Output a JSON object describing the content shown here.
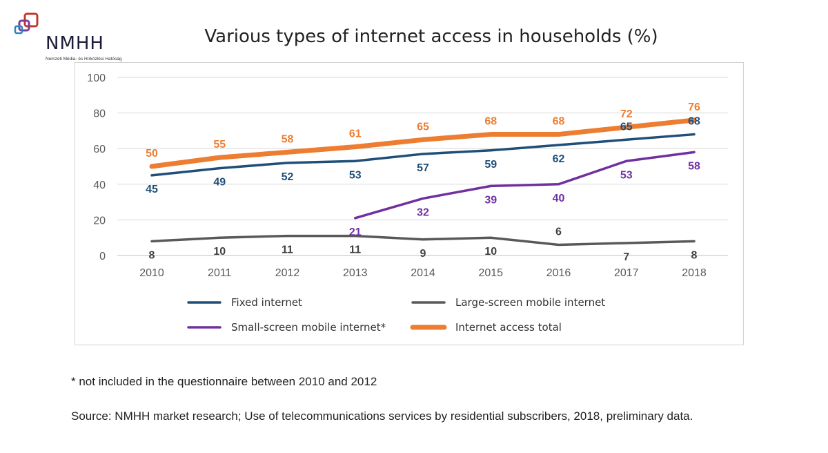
{
  "logo": {
    "text": "NMHH",
    "subtitle": "Nemzeti Média- és Hírközlési Hatóság"
  },
  "title": "Various types of internet access in households (%)",
  "footnote": "* not included in the questionnaire between 2010 and 2012",
  "source": "Source: NMHH market research; Use of telecommunications services by residential subscribers, 2018, preliminary data.",
  "chart_data": {
    "type": "line",
    "title": "Various types of internet access in households (%)",
    "x": [
      "2010",
      "2011",
      "2012",
      "2013",
      "2014",
      "2015",
      "2016",
      "2017",
      "2018"
    ],
    "ylim": [
      0,
      100
    ],
    "yticks": [
      0,
      20,
      40,
      60,
      80,
      100
    ],
    "grid": true,
    "legend_position": "bottom",
    "series": [
      {
        "name": "Fixed internet",
        "color": "#1f4e79",
        "values": [
          45,
          49,
          52,
          53,
          57,
          59,
          62,
          65,
          68
        ],
        "label_side": [
          "below",
          "below",
          "below",
          "below",
          "below",
          "below",
          "below",
          "above",
          "above"
        ]
      },
      {
        "name": "Large-screen mobile internet",
        "color": "#595959",
        "values": [
          8,
          10,
          11,
          11,
          9,
          10,
          6,
          7,
          8
        ],
        "label_side": [
          "below",
          "below",
          "below",
          "below",
          "below",
          "below",
          "above",
          "below",
          "below"
        ]
      },
      {
        "name": "Small-screen mobile internet*",
        "color": "#7030a0",
        "values": [
          null,
          null,
          null,
          21,
          32,
          39,
          40,
          53,
          58
        ],
        "label_side": [
          "below",
          "below",
          "below",
          "below",
          "below",
          "below",
          "below",
          "below",
          "below"
        ]
      },
      {
        "name": "Internet access total",
        "color": "#ed7d31",
        "values": [
          50,
          55,
          58,
          61,
          65,
          68,
          68,
          72,
          76
        ],
        "label_side": [
          "above",
          "above",
          "above",
          "above",
          "above",
          "above",
          "above",
          "above",
          "above"
        ]
      }
    ]
  }
}
